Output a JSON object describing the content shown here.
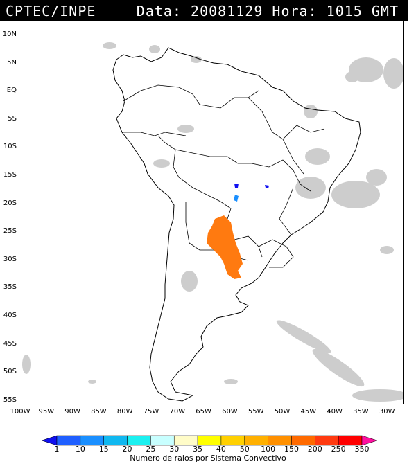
{
  "header": {
    "source": "CPTEC/INPE",
    "datetime": "Data: 20081129 Hora: 1015 GMT"
  },
  "axes": {
    "latitude_labels": [
      "10N",
      "5N",
      "EQ",
      "5S",
      "10S",
      "15S",
      "20S",
      "25S",
      "30S",
      "35S",
      "40S",
      "45S",
      "50S",
      "55S"
    ],
    "longitude_labels": [
      "100W",
      "95W",
      "90W",
      "85W",
      "80W",
      "75W",
      "70W",
      "65W",
      "60W",
      "55W",
      "50W",
      "45W",
      "40W",
      "35W",
      "30W"
    ]
  },
  "legend": {
    "caption": "Numero de raios por Sistema Convectivo",
    "levels": [
      "1",
      "10",
      "15",
      "20",
      "25",
      "30",
      "35",
      "40",
      "50",
      "100",
      "150",
      "200",
      "250",
      "350"
    ],
    "colors": [
      "#1010f0",
      "#1f5fff",
      "#1a8fff",
      "#10b8f0",
      "#1cf0f0",
      "#c8ffff",
      "#fffcc8",
      "#ffff00",
      "#ffd000",
      "#ffb000",
      "#ff9000",
      "#ff6a00",
      "#ff3a10",
      "#ff0000",
      "#ff10a0"
    ]
  },
  "overlay": {
    "cloud_color": "#c8c8c8",
    "lightning_systems": [
      {
        "color": "#ff7a10",
        "count_class": "150"
      },
      {
        "color": "#1a8fff",
        "count_class": "15"
      },
      {
        "color": "#1010f0",
        "count_class": "1"
      }
    ]
  }
}
